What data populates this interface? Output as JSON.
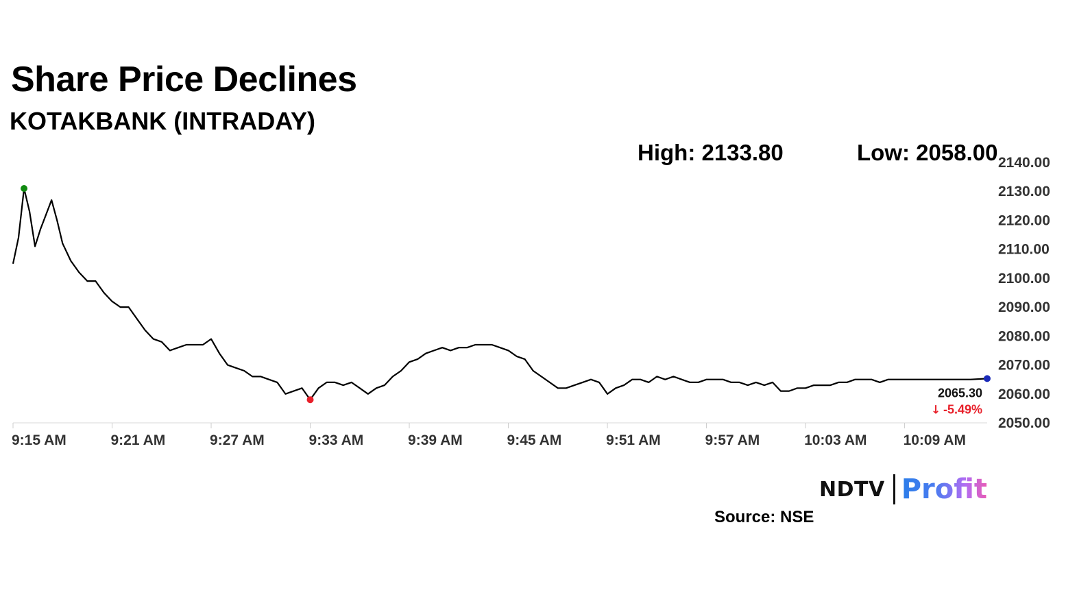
{
  "title": "Share Price Declines",
  "subtitle": "KOTAKBANK (INTRADAY)",
  "stats": {
    "high": "High: 2133.80",
    "low": "Low: 2058.00"
  },
  "logo": {
    "brand": "NDTV",
    "product": "Profit"
  },
  "source": "Source: NSE",
  "chart_data": {
    "type": "line",
    "x_start": "9:15 AM",
    "x_end": "10:14 AM",
    "x_ticks": [
      "9:15 AM",
      "9:21 AM",
      "9:27 AM",
      "9:33 AM",
      "9:39 AM",
      "9:45 AM",
      "9:51 AM",
      "9:57 AM",
      "10:03 AM",
      "10:09 AM"
    ],
    "y_ticks": [
      "2140.00",
      "2130.00",
      "2120.00",
      "2110.00",
      "2100.00",
      "2090.00",
      "2080.00",
      "2070.00",
      "2060.00",
      "2050.00"
    ],
    "ylim": [
      2050,
      2140
    ],
    "y_axis_position": "right",
    "grid": false,
    "series": [
      {
        "x": [
          "9:15 AM",
          "9:15:20 AM",
          "9:15:40 AM",
          "9:16 AM",
          "9:16:20 AM",
          "9:16:40 AM",
          "9:17 AM",
          "9:17:20 AM",
          "9:17:40 AM",
          "9:18 AM",
          "9:18:30 AM",
          "9:19 AM",
          "9:19:30 AM",
          "9:20 AM",
          "9:20:30 AM",
          "9:21 AM",
          "9:21:30 AM",
          "9:22 AM",
          "9:22:30 AM",
          "9:23 AM",
          "9:23:30 AM",
          "9:24 AM",
          "9:24:30 AM",
          "9:25 AM",
          "9:25:30 AM",
          "9:26 AM",
          "9:26:30 AM",
          "9:27 AM",
          "9:27:30 AM",
          "9:28 AM",
          "9:28:30 AM",
          "9:29 AM",
          "9:29:30 AM",
          "9:30 AM",
          "9:30:30 AM",
          "9:31 AM",
          "9:31:30 AM",
          "9:32 AM",
          "9:32:30 AM",
          "9:33 AM",
          "9:33:30 AM",
          "9:34 AM",
          "9:34:30 AM",
          "9:35 AM",
          "9:35:30 AM",
          "9:36 AM",
          "9:36:30 AM",
          "9:37 AM",
          "9:37:30 AM",
          "9:38 AM",
          "9:38:30 AM",
          "9:39 AM",
          "9:39:30 AM",
          "9:40 AM",
          "9:40:30 AM",
          "9:41 AM",
          "9:41:30 AM",
          "9:42 AM",
          "9:42:30 AM",
          "9:43 AM",
          "9:43:30 AM",
          "9:44 AM",
          "9:44:30 AM",
          "9:45 AM",
          "9:45:30 AM",
          "9:46 AM",
          "9:46:30 AM",
          "9:47 AM",
          "9:47:30 AM",
          "9:48 AM",
          "9:48:30 AM",
          "9:49 AM",
          "9:49:30 AM",
          "9:50 AM",
          "9:50:30 AM",
          "9:51 AM",
          "9:51:30 AM",
          "9:52 AM",
          "9:52:30 AM",
          "9:53 AM",
          "9:53:30 AM",
          "9:54 AM",
          "9:54:30 AM",
          "9:55 AM",
          "9:55:30 AM",
          "9:56 AM",
          "9:56:30 AM",
          "9:57 AM",
          "9:57:30 AM",
          "9:58 AM",
          "9:58:30 AM",
          "9:59 AM",
          "9:59:30 AM",
          "10:00 AM",
          "10:00:30 AM",
          "10:01 AM",
          "10:01:30 AM",
          "10:02 AM",
          "10:02:30 AM",
          "10:03 AM",
          "10:03:30 AM",
          "10:04 AM",
          "10:04:30 AM",
          "10:05 AM",
          "10:05:30 AM",
          "10:06 AM",
          "10:06:30 AM",
          "10:07 AM",
          "10:07:30 AM",
          "10:08 AM",
          "10:08:30 AM",
          "10:09 AM",
          "10:09:30 AM",
          "10:10 AM",
          "10:10:30 AM",
          "10:11 AM",
          "10:11:30 AM",
          "10:12 AM",
          "10:12:30 AM",
          "10:13 AM",
          "10:14 AM"
        ],
        "values": [
          2105,
          2114,
          2131,
          2123,
          2111,
          2117,
          2122,
          2127,
          2120,
          2112,
          2106,
          2102,
          2099,
          2099,
          2095,
          2092,
          2090,
          2090,
          2086,
          2082,
          2079,
          2078,
          2075,
          2076,
          2077,
          2077,
          2077,
          2079,
          2074,
          2070,
          2069,
          2068,
          2066,
          2066,
          2065,
          2064,
          2060,
          2061,
          2062,
          2058,
          2062,
          2064,
          2064,
          2063,
          2064,
          2062,
          2060,
          2062,
          2063,
          2066,
          2068,
          2071,
          2072,
          2074,
          2075,
          2076,
          2075,
          2076,
          2076,
          2077,
          2077,
          2077,
          2076,
          2075,
          2073,
          2072,
          2068,
          2066,
          2064,
          2062,
          2062,
          2063,
          2064,
          2065,
          2064,
          2060,
          2062,
          2063,
          2065,
          2065,
          2064,
          2066,
          2065,
          2066,
          2065,
          2064,
          2064,
          2065,
          2065,
          2065,
          2064,
          2064,
          2063,
          2064,
          2063,
          2064,
          2061,
          2061,
          2062,
          2062,
          2063,
          2063,
          2063,
          2064,
          2064,
          2065,
          2065,
          2065,
          2064,
          2065,
          2065,
          2065,
          2065,
          2065,
          2065,
          2065,
          2065,
          2065,
          2065,
          2065,
          2065.3
        ]
      }
    ],
    "markers": [
      {
        "label": "high",
        "x": "9:15:40 AM",
        "value": 2131,
        "color": "#118a11"
      },
      {
        "label": "low",
        "x": "9:33 AM",
        "value": 2058,
        "color": "#e8202a"
      },
      {
        "label": "last",
        "x": "10:14 AM",
        "value": 2065.3,
        "color": "#1a2ab8"
      }
    ],
    "last_price": "2065.30",
    "change_pct": "-5.49%",
    "colors": {
      "line": "#000000",
      "change": "#e8202a"
    }
  }
}
